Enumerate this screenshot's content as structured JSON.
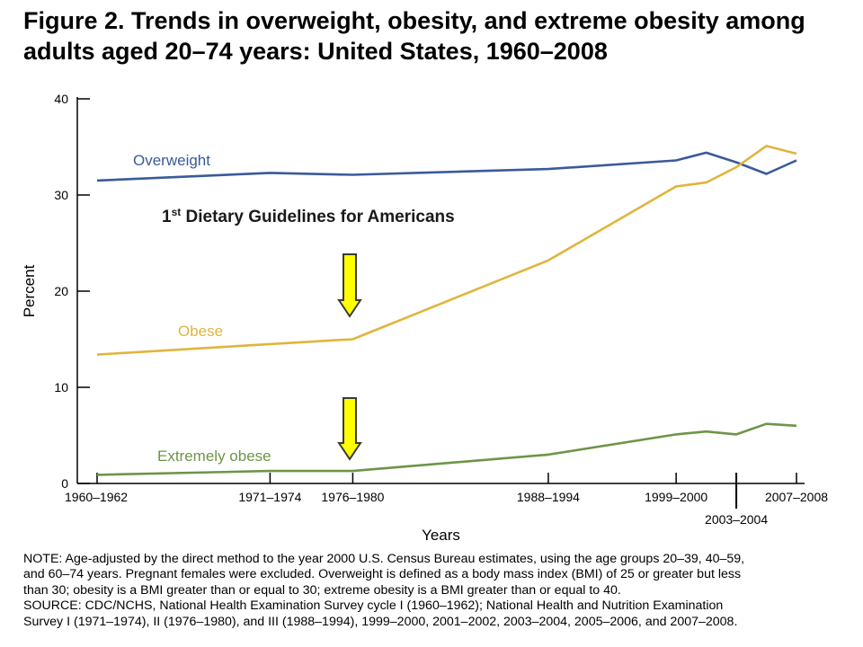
{
  "header": {
    "title_lines": [
      "Figure 2. Trends in overweight, obesity, and extreme obesity among",
      "adults aged 20–74 years: United States, 1960–2008"
    ]
  },
  "chart_data": {
    "type": "line",
    "title": "Figure 2. Trends in overweight, obesity, and extreme obesity among adults aged 20–74 years: United States, 1960–2008",
    "xlabel": "Years",
    "ylabel": "Percent",
    "ylim": [
      0,
      40
    ],
    "yticks": [
      0,
      10,
      20,
      30,
      40
    ],
    "grid": false,
    "x_ticks": [
      {
        "year": 1961,
        "label": "1960–1962"
      },
      {
        "year": 1972.5,
        "label": "1971–1974"
      },
      {
        "year": 1978,
        "label": "1976–1980"
      },
      {
        "year": 1991,
        "label": "1988–1994"
      },
      {
        "year": 1999.5,
        "label": "1999–2000"
      },
      {
        "year": 2003.5,
        "label": "2003–2004"
      },
      {
        "year": 2007.5,
        "label": "2007–2008"
      }
    ],
    "series": [
      {
        "name": "Overweight",
        "color": "#3a5a9a",
        "points": [
          [
            1961,
            31.5
          ],
          [
            1972.5,
            32.3
          ],
          [
            1978,
            32.1
          ],
          [
            1991,
            32.7
          ],
          [
            1999.5,
            33.6
          ],
          [
            2001.5,
            34.4
          ],
          [
            2003.5,
            33.4
          ],
          [
            2005.5,
            32.2
          ],
          [
            2007.5,
            33.6
          ]
        ]
      },
      {
        "name": "Obese",
        "color": "#e0b53c",
        "points": [
          [
            1961,
            13.4
          ],
          [
            1972.5,
            14.5
          ],
          [
            1978,
            15.0
          ],
          [
            1991,
            23.2
          ],
          [
            1999.5,
            30.9
          ],
          [
            2001.5,
            31.3
          ],
          [
            2003.5,
            32.9
          ],
          [
            2005.5,
            35.1
          ],
          [
            2007.5,
            34.3
          ]
        ]
      },
      {
        "name": "Extremely obese",
        "color": "#6e9448",
        "points": [
          [
            1961,
            0.9
          ],
          [
            1972.5,
            1.3
          ],
          [
            1978,
            1.3
          ],
          [
            1991,
            3.0
          ],
          [
            1999.5,
            5.1
          ],
          [
            2001.5,
            5.4
          ],
          [
            2003.5,
            5.1
          ],
          [
            2005.5,
            6.2
          ],
          [
            2007.5,
            6.0
          ]
        ]
      }
    ],
    "annotations": {
      "guidelines_main": "1",
      "guidelines_sup": "st",
      "guidelines_rest": " Dietary Guidelines for Americans",
      "arrow_color": "#ffff00"
    }
  },
  "notes": {
    "lines": [
      "NOTE: Age-adjusted by the direct method to the year 2000 U.S. Census Bureau estimates, using the age groups 20–39, 40–59,",
      "and 60–74 years. Pregnant females were excluded. Overweight is defined as a body mass index (BMI) of 25 or greater but less",
      "than 30; obesity is a BMI greater than or equal to 30; extreme obesity is a BMI greater than or equal to 40.",
      "SOURCE: CDC/NCHS, National Health Examination Survey cycle I (1960–1962); National Health and Nutrition Examination",
      "Survey I (1971–1974), II (1976–1980), and III (1988–1994), 1999–2000, 2001–2002, 2003–2004, 2005–2006, and 2007–2008."
    ]
  }
}
